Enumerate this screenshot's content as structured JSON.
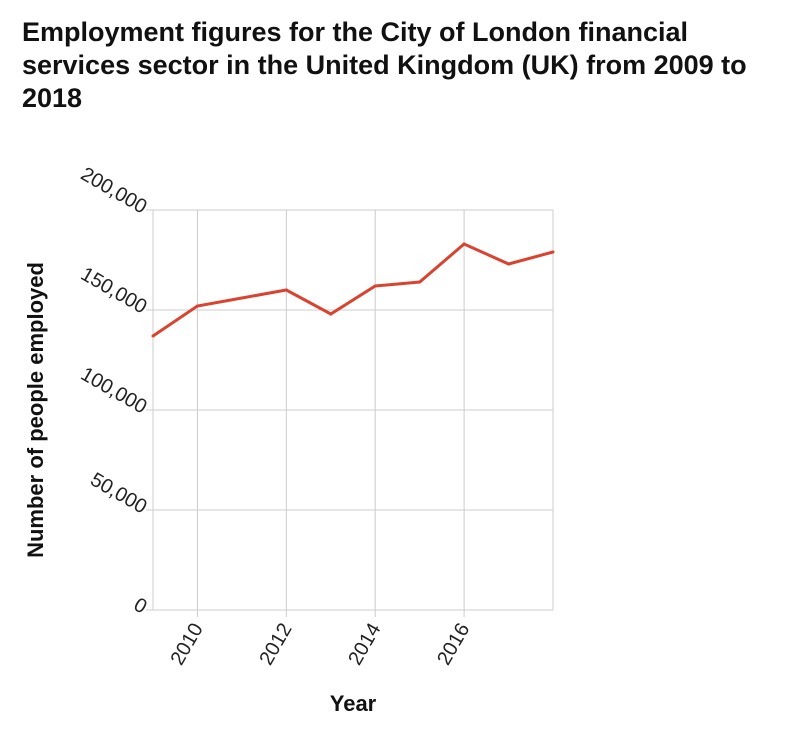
{
  "chart_data": {
    "type": "line",
    "title": "Employment figures for the City of London financial services sector in the United Kingdom (UK) from 2009 to 2018",
    "xlabel": "Year",
    "ylabel": "Number of people employed",
    "x": [
      2009,
      2010,
      2011,
      2012,
      2013,
      2014,
      2015,
      2016,
      2017,
      2018
    ],
    "xlim": [
      2009,
      2018
    ],
    "ylim": [
      0,
      200000
    ],
    "xticks": [
      2010,
      2012,
      2014,
      2016
    ],
    "xtick_labels": [
      "2010",
      "2012",
      "2014",
      "2016"
    ],
    "yticks": [
      0,
      50000,
      100000,
      150000,
      200000
    ],
    "ytick_labels": [
      "0",
      "50,000",
      "100,000",
      "150,000",
      "200,000"
    ],
    "grid": true,
    "series": [
      {
        "values": [
          137000,
          152000,
          156000,
          160000,
          148000,
          162000,
          164000,
          183000,
          173000,
          179000
        ],
        "color": "#d9432f"
      }
    ]
  }
}
